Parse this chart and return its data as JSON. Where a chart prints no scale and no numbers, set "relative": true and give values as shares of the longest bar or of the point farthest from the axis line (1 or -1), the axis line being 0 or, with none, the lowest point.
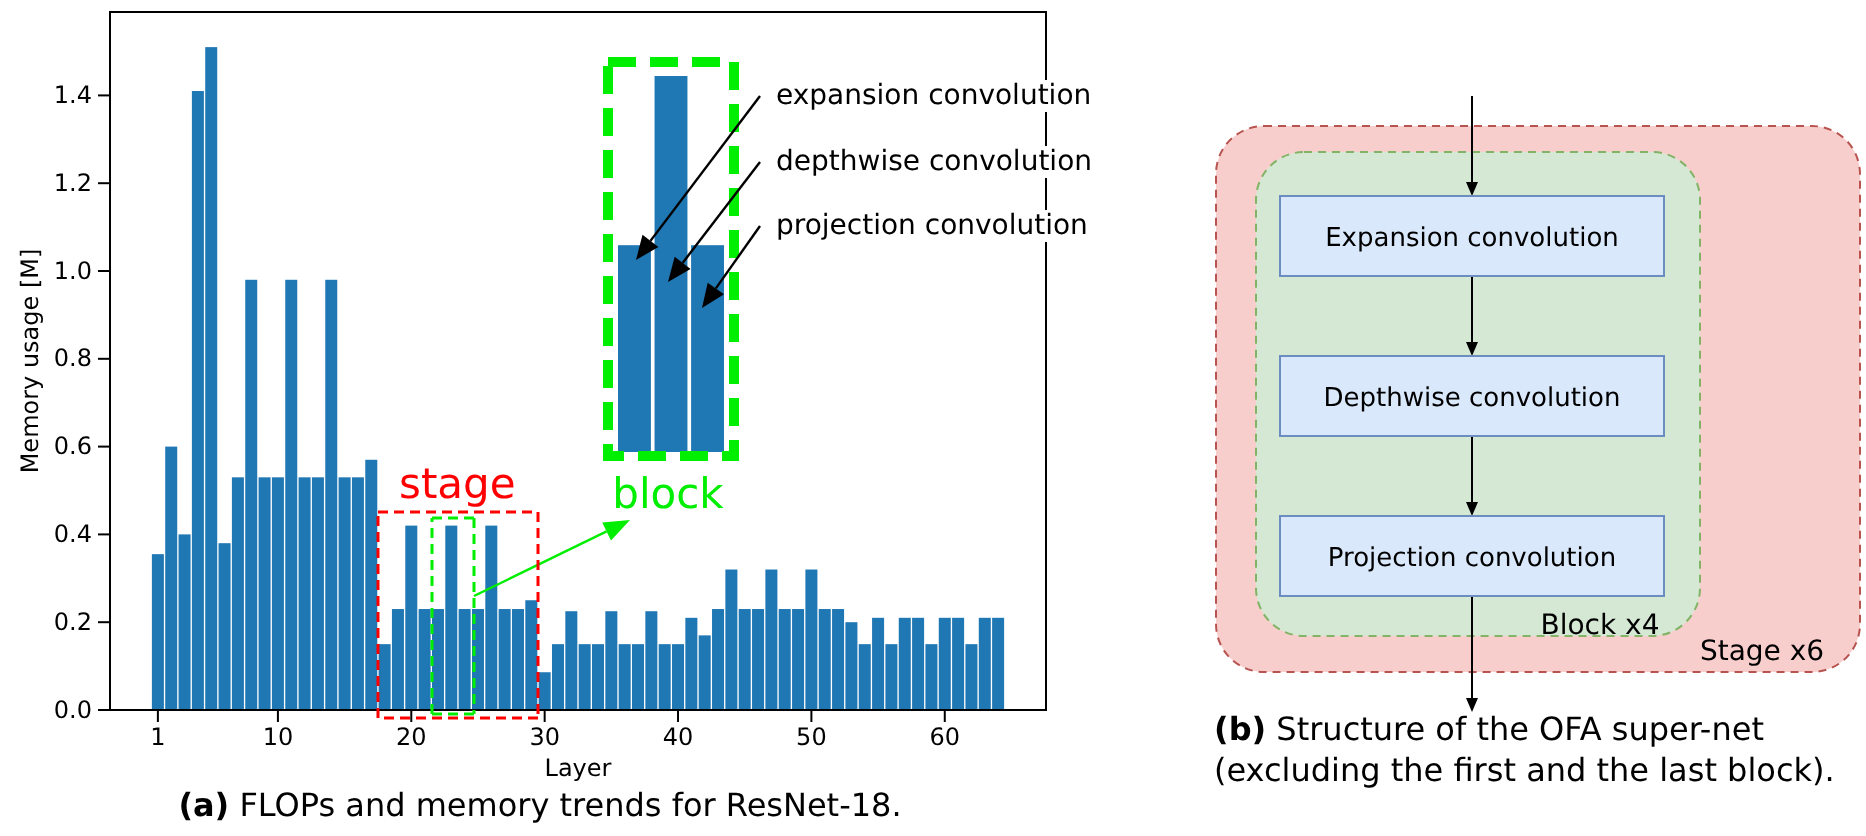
{
  "chart_data": [
    {
      "type": "bar",
      "title": "(a) FLOPs and memory trends for ResNet-18.",
      "xlabel": "Layer",
      "ylabel": "Memory usage [M]",
      "color": "#1f77b4",
      "x": [
        1,
        2,
        3,
        4,
        5,
        6,
        7,
        8,
        9,
        10,
        11,
        12,
        13,
        14,
        15,
        16,
        17,
        18,
        19,
        20,
        21,
        22,
        23,
        24,
        25,
        26,
        27,
        28,
        29,
        30,
        31,
        32,
        33,
        34,
        35,
        36,
        37,
        38,
        39,
        40,
        41,
        42,
        43,
        44,
        45,
        46,
        47,
        48,
        49,
        50,
        51,
        52,
        53,
        54,
        55,
        56,
        57,
        58,
        59,
        60,
        61,
        62,
        63,
        64
      ],
      "values": [
        0.355,
        0.6,
        0.4,
        1.41,
        1.51,
        0.38,
        0.53,
        0.98,
        0.53,
        0.53,
        0.98,
        0.53,
        0.53,
        0.98,
        0.53,
        0.53,
        0.57,
        0.15,
        0.23,
        0.42,
        0.23,
        0.23,
        0.42,
        0.23,
        0.23,
        0.42,
        0.23,
        0.23,
        0.25,
        0.086,
        0.15,
        0.225,
        0.15,
        0.15,
        0.225,
        0.15,
        0.15,
        0.225,
        0.15,
        0.15,
        0.21,
        0.17,
        0.23,
        0.32,
        0.23,
        0.23,
        0.32,
        0.23,
        0.23,
        0.32,
        0.23,
        0.23,
        0.2,
        0.15,
        0.21,
        0.15,
        0.21,
        0.21,
        0.15,
        0.21,
        0.21,
        0.15,
        0.21,
        0.21
      ],
      "xlim": [
        -2.59,
        67.59
      ],
      "ylim": [
        0,
        1.59
      ],
      "xticks": [
        1,
        10,
        20,
        30,
        40,
        50,
        60
      ],
      "yticks": [
        {
          "value": 0,
          "label": "0.0"
        },
        {
          "value": 0.2,
          "label": "0.2"
        },
        {
          "value": 0.4,
          "label": "0.4"
        },
        {
          "value": 0.6,
          "label": "0.6"
        },
        {
          "value": 0.8,
          "label": "0.8"
        },
        {
          "value": 1,
          "label": "1.0"
        },
        {
          "value": 1.2,
          "label": "1.2"
        },
        {
          "value": 1.4,
          "label": "1.4"
        }
      ],
      "annotations": [
        {
          "text": "stage",
          "x": 23,
          "y": 0.42
        },
        "block"
      ]
    },
    {
      "type": "bar",
      "relative": true,
      "categories": [
        null,
        null,
        null
      ],
      "values": [
        0.55,
        1,
        0.55
      ],
      "color": "#1f77b4",
      "annotations": [
        "expansion convolution",
        "depthwise convolution",
        "projection convolution"
      ]
    },
    {
      "type": "other",
      "title": "(b) Structure of the OFA super-net (excluding the first and the last block).",
      "annotations": [
        "Expansion convolution",
        "Depthwise convolution",
        "Projection convolution",
        "Block x4",
        "Stage x6"
      ]
    }
  ]
}
